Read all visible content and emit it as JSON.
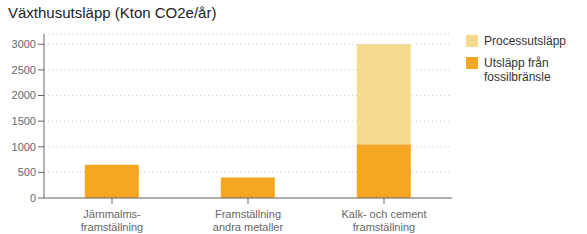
{
  "chart_data": {
    "type": "bar",
    "title": "Växthusutsläpp (Kton CO2e/år)",
    "categories": [
      "Järnmalms-\nframställning",
      "Framställning\nandra metaller",
      "Kalk- och cement\nframställning"
    ],
    "series": [
      {
        "name": "Utsläpp från\nfossilbränsle",
        "color": "#F5A623",
        "values": [
          650,
          400,
          1050
        ]
      },
      {
        "name": "Processutsläpp",
        "color": "#F5D98C",
        "values": [
          0,
          0,
          1950
        ]
      }
    ],
    "stacked": true,
    "ylim": [
      0,
      3200
    ],
    "yticks": [
      0,
      500,
      1000,
      1500,
      2000,
      2500,
      3000
    ],
    "grid": true,
    "legend": "upper right"
  }
}
